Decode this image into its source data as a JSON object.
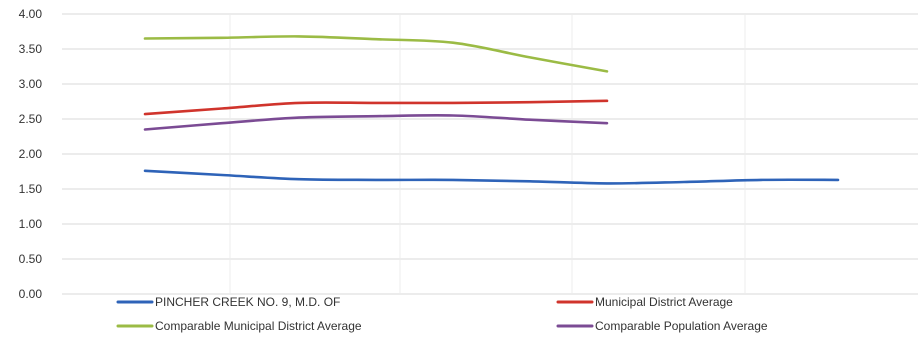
{
  "chart_data": {
    "type": "line",
    "title": "",
    "xlabel": "",
    "ylabel": "",
    "ylim": [
      0,
      4
    ],
    "yticks": [
      "0.00",
      "0.50",
      "1.00",
      "1.50",
      "2.00",
      "2.50",
      "3.00",
      "3.50",
      "4.00"
    ],
    "grid": true,
    "legend_position": "bottom",
    "x": [
      1,
      2,
      3,
      4,
      5,
      6,
      7,
      8,
      9,
      10
    ],
    "series": [
      {
        "name": "PINCHER CREEK NO. 9, M.D. OF",
        "color": "#2e63b8",
        "values": [
          1.76,
          1.7,
          1.64,
          1.63,
          1.63,
          1.61,
          1.58,
          1.6,
          1.63,
          1.63
        ]
      },
      {
        "name": "Municipal District Average",
        "color": "#d0342c",
        "values": [
          2.57,
          2.65,
          2.73,
          2.73,
          2.73,
          2.74,
          2.76,
          null,
          null,
          null
        ]
      },
      {
        "name": "Comparable Municipal District Average",
        "color": "#9bbb45",
        "values": [
          3.65,
          3.66,
          3.68,
          3.64,
          3.59,
          3.38,
          3.18,
          null,
          null,
          null
        ]
      },
      {
        "name": "Comparable Population Average",
        "color": "#7b4b94",
        "values": [
          2.35,
          2.44,
          2.52,
          2.54,
          2.55,
          2.49,
          2.44,
          null,
          null,
          null
        ]
      }
    ]
  }
}
